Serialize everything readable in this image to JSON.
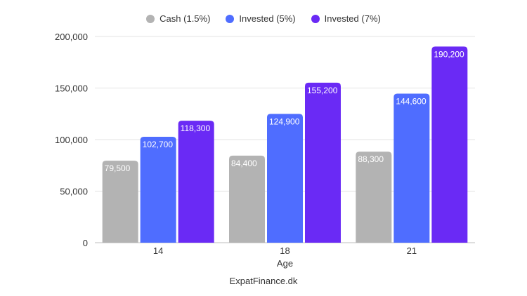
{
  "chart_data": {
    "type": "bar",
    "categories": [
      "14",
      "18",
      "21"
    ],
    "series": [
      {
        "name": "Cash (1.5%)",
        "values": [
          79500,
          84400,
          88300
        ],
        "color": "#b3b3b3"
      },
      {
        "name": "Invested (5%)",
        "values": [
          102700,
          124900,
          144600
        ],
        "color": "#4f6dff"
      },
      {
        "name": "Invested (7%)",
        "values": [
          118300,
          155200,
          190200
        ],
        "color": "#6a2af5"
      }
    ],
    "data_labels": [
      [
        "79,500",
        "84,400",
        "88,300"
      ],
      [
        "102,700",
        "124,900",
        "144,600"
      ],
      [
        "118,300",
        "155,200",
        "190,200"
      ]
    ],
    "title": "",
    "xlabel": "Age",
    "ylabel": "",
    "ylim": [
      0,
      200000
    ],
    "yticks": [
      0,
      50000,
      100000,
      150000,
      200000
    ],
    "ytick_labels": [
      "0",
      "50,000",
      "100,000",
      "150,000",
      "200,000"
    ],
    "grid": true,
    "legend_position": "top"
  },
  "source": "ExpatFinance.dk"
}
